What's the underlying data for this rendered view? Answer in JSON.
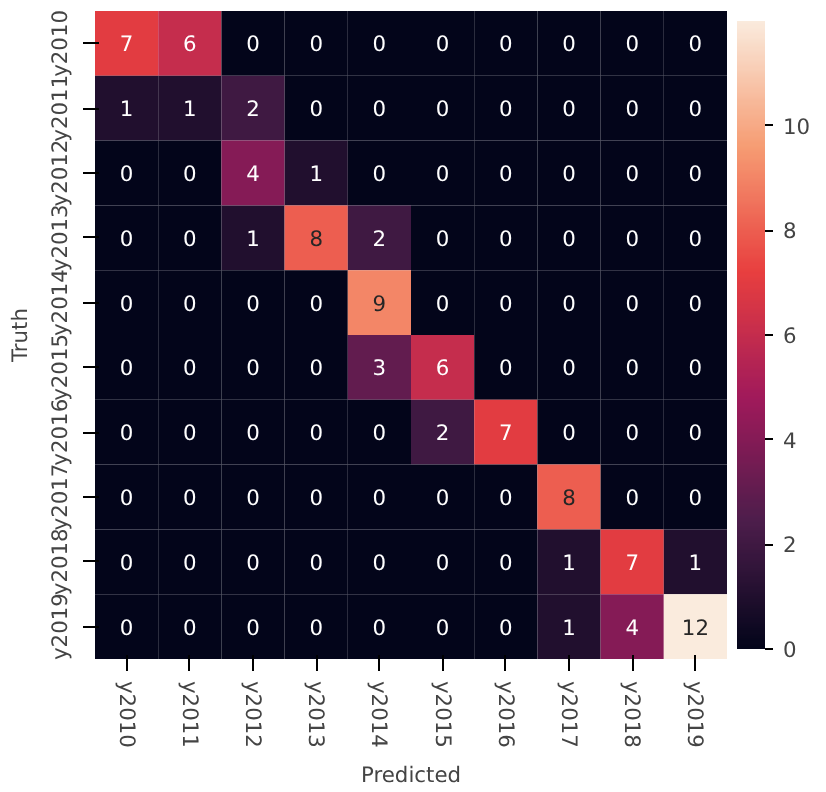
{
  "chart_data": {
    "type": "heatmap",
    "xlabel": "Predicted",
    "ylabel": "Truth",
    "categories": [
      "y2010",
      "y2011",
      "y2012",
      "y2013",
      "y2014",
      "y2015",
      "y2016",
      "y2017",
      "y2018",
      "y2019"
    ],
    "y_categories": [
      "y2010",
      "y2011",
      "y2012",
      "y2013",
      "y2014",
      "y2015",
      "y2016",
      "y2017",
      "y2018",
      "y2019"
    ],
    "cells": [
      [
        7,
        6,
        0,
        0,
        0,
        0,
        0,
        0,
        0,
        0
      ],
      [
        1,
        1,
        2,
        0,
        0,
        0,
        0,
        0,
        0,
        0
      ],
      [
        0,
        0,
        4,
        1,
        0,
        0,
        0,
        0,
        0,
        0
      ],
      [
        0,
        0,
        1,
        8,
        2,
        0,
        0,
        0,
        0,
        0
      ],
      [
        0,
        0,
        0,
        0,
        9,
        0,
        0,
        0,
        0,
        0
      ],
      [
        0,
        0,
        0,
        0,
        3,
        6,
        0,
        0,
        0,
        0
      ],
      [
        0,
        0,
        0,
        0,
        0,
        2,
        7,
        0,
        0,
        0
      ],
      [
        0,
        0,
        0,
        0,
        0,
        0,
        0,
        8,
        0,
        0
      ],
      [
        0,
        0,
        0,
        0,
        0,
        0,
        0,
        1,
        7,
        1
      ],
      [
        0,
        0,
        0,
        0,
        0,
        0,
        0,
        1,
        4,
        12
      ]
    ],
    "clim": [
      0,
      12
    ],
    "cticks": [
      0,
      2,
      4,
      6,
      8,
      10
    ],
    "data_labels": true
  }
}
